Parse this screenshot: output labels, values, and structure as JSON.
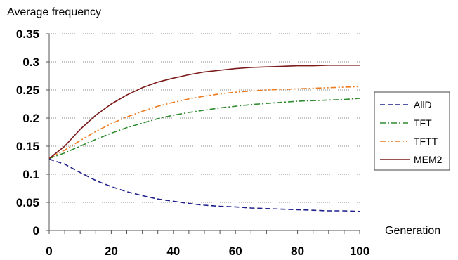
{
  "chart_data": {
    "type": "line",
    "ylabel": "Average frequency",
    "xlabel": "Generation",
    "xlim": [
      0,
      100
    ],
    "ylim": [
      0,
      0.35
    ],
    "x_ticks": [
      0,
      20,
      40,
      60,
      80,
      100
    ],
    "y_ticks": [
      0,
      0.05,
      0.1,
      0.15,
      0.2,
      0.25,
      0.3,
      0.35
    ],
    "x_tick_labels": [
      "0",
      "20",
      "40",
      "60",
      "80",
      "100"
    ],
    "y_tick_labels": [
      "0",
      "0.05",
      "0.1",
      "0.15",
      "0.2",
      "0.25",
      "0.3",
      "0.35"
    ],
    "grid": "horizontal-dotted",
    "legend_position": "right",
    "x": [
      0,
      5,
      10,
      15,
      20,
      25,
      30,
      35,
      40,
      45,
      50,
      55,
      60,
      65,
      70,
      75,
      80,
      85,
      90,
      95,
      100
    ],
    "series": [
      {
        "name": "AllD",
        "color": "#1f1f8c",
        "dash": "dash",
        "values": [
          0.127,
          0.118,
          0.103,
          0.089,
          0.078,
          0.069,
          0.062,
          0.056,
          0.052,
          0.048,
          0.045,
          0.043,
          0.042,
          0.04,
          0.039,
          0.038,
          0.037,
          0.036,
          0.035,
          0.035,
          0.034
        ]
      },
      {
        "name": "TFT",
        "color": "#2e8b2e",
        "dash": "dashdot",
        "values": [
          0.128,
          0.138,
          0.15,
          0.162,
          0.173,
          0.183,
          0.191,
          0.199,
          0.205,
          0.21,
          0.214,
          0.218,
          0.221,
          0.224,
          0.226,
          0.228,
          0.23,
          0.231,
          0.232,
          0.233,
          0.235
        ]
      },
      {
        "name": "TFTT",
        "color": "#ee7a1e",
        "dash": "dashdotdot",
        "values": [
          0.129,
          0.143,
          0.16,
          0.176,
          0.19,
          0.202,
          0.212,
          0.221,
          0.228,
          0.234,
          0.239,
          0.243,
          0.246,
          0.248,
          0.25,
          0.251,
          0.252,
          0.253,
          0.254,
          0.255,
          0.256
        ]
      },
      {
        "name": "MEM2",
        "color": "#7b1a1a",
        "dash": "solid",
        "values": [
          0.128,
          0.15,
          0.18,
          0.205,
          0.225,
          0.241,
          0.254,
          0.264,
          0.271,
          0.277,
          0.282,
          0.285,
          0.288,
          0.29,
          0.291,
          0.292,
          0.293,
          0.293,
          0.294,
          0.294,
          0.294
        ]
      }
    ]
  }
}
